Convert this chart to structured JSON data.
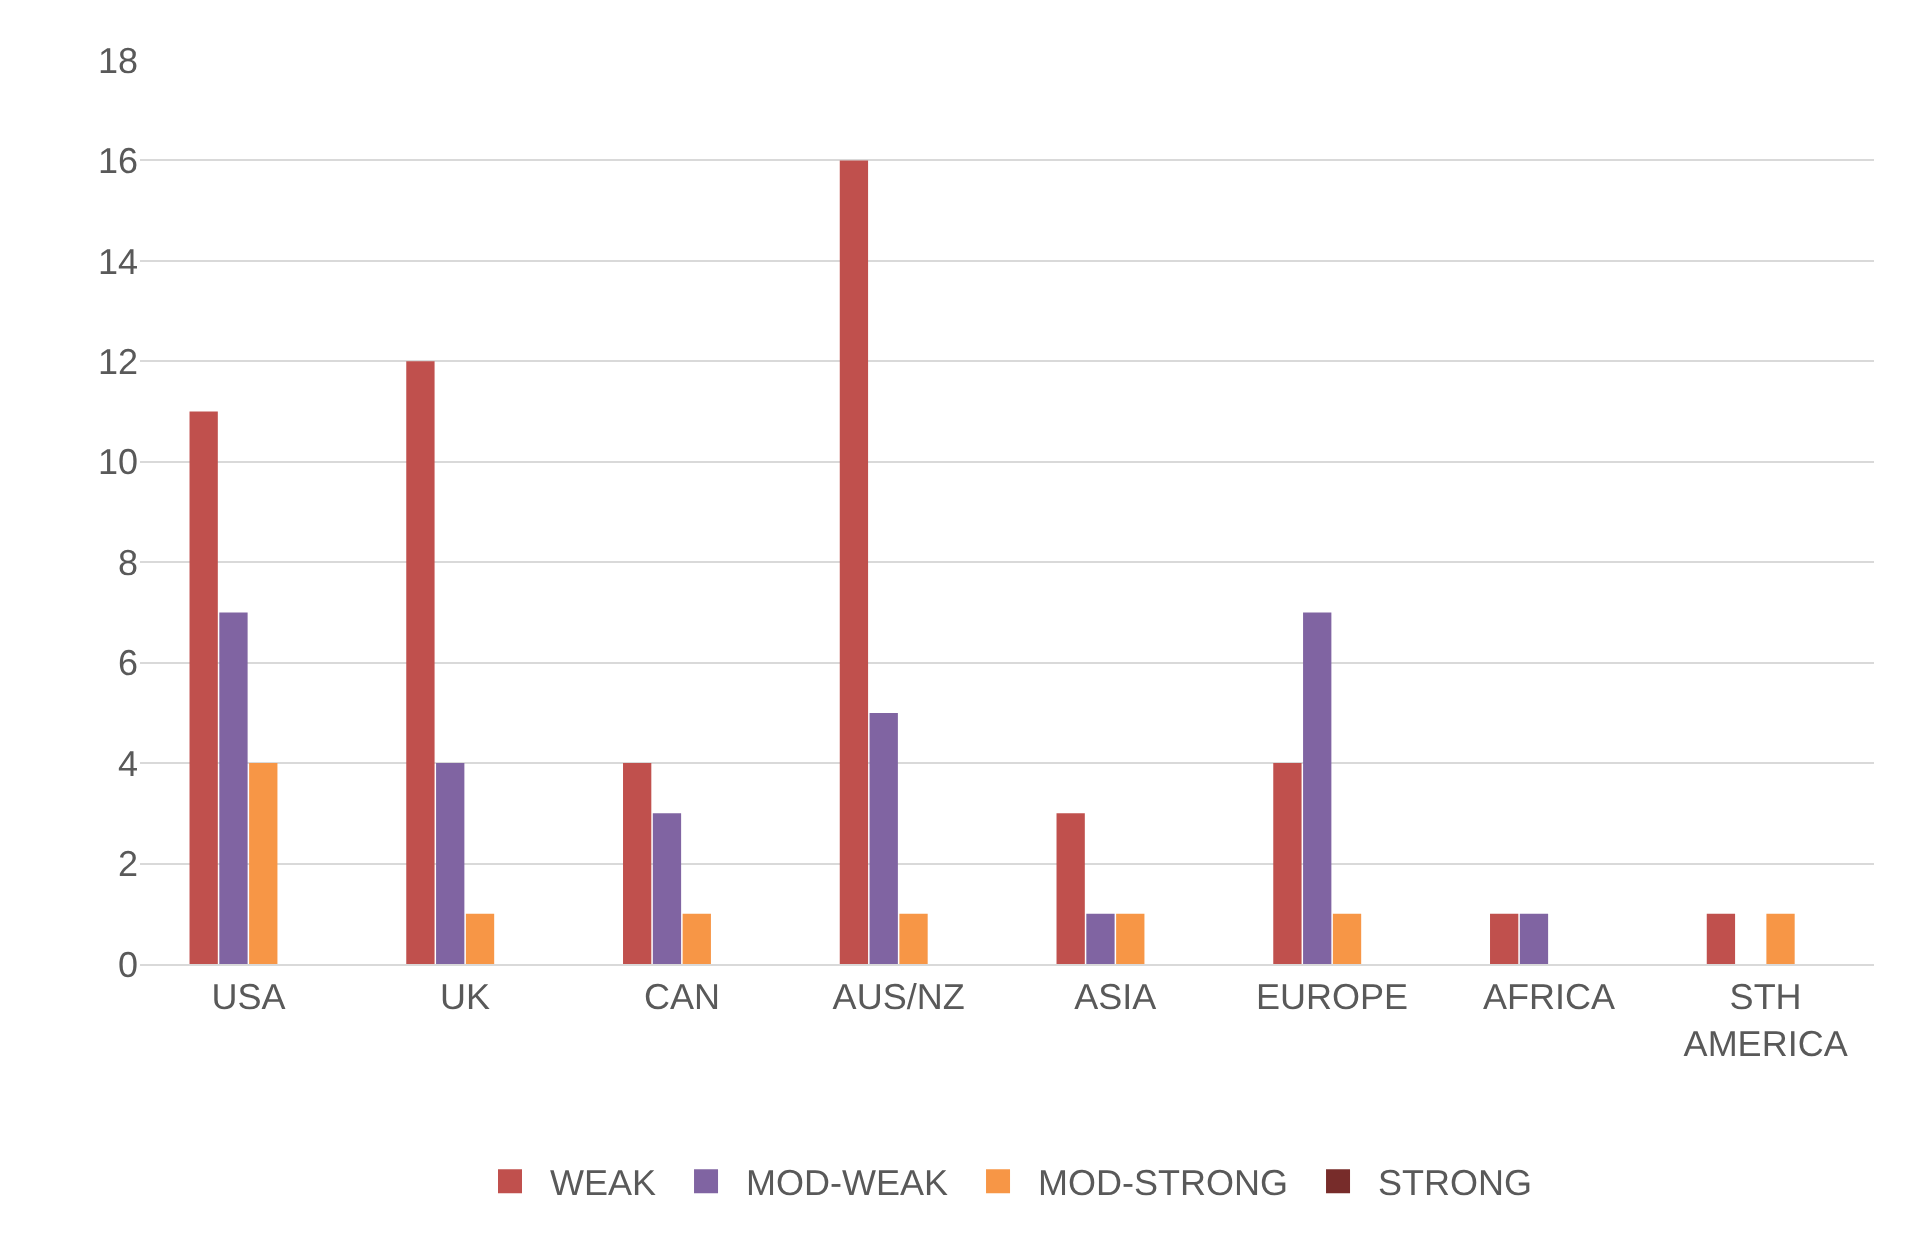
{
  "chart_data": {
    "type": "bar",
    "categories": [
      "USA",
      "UK",
      "CAN",
      "AUS/NZ",
      "ASIA",
      "EUROPE",
      "AFRICA",
      "STH AMERICA"
    ],
    "series": [
      {
        "name": "WEAK",
        "color": "#c0504d",
        "values": [
          11,
          12,
          4,
          16,
          3,
          4,
          1,
          1
        ]
      },
      {
        "name": "MOD-WEAK",
        "color": "#8064a2",
        "values": [
          7,
          4,
          3,
          5,
          1,
          7,
          1,
          null
        ]
      },
      {
        "name": "MOD-STRONG",
        "color": "#f79646",
        "values": [
          4,
          1,
          1,
          1,
          1,
          1,
          null,
          1
        ]
      },
      {
        "name": "STRONG",
        "color": "#772c2a",
        "values": [
          null,
          null,
          null,
          null,
          null,
          null,
          null,
          null
        ]
      }
    ],
    "ylim": [
      0,
      18
    ],
    "yticks": [
      0,
      2,
      4,
      6,
      8,
      10,
      12,
      14,
      16,
      18
    ],
    "grid": "y",
    "legend": "bottom"
  }
}
